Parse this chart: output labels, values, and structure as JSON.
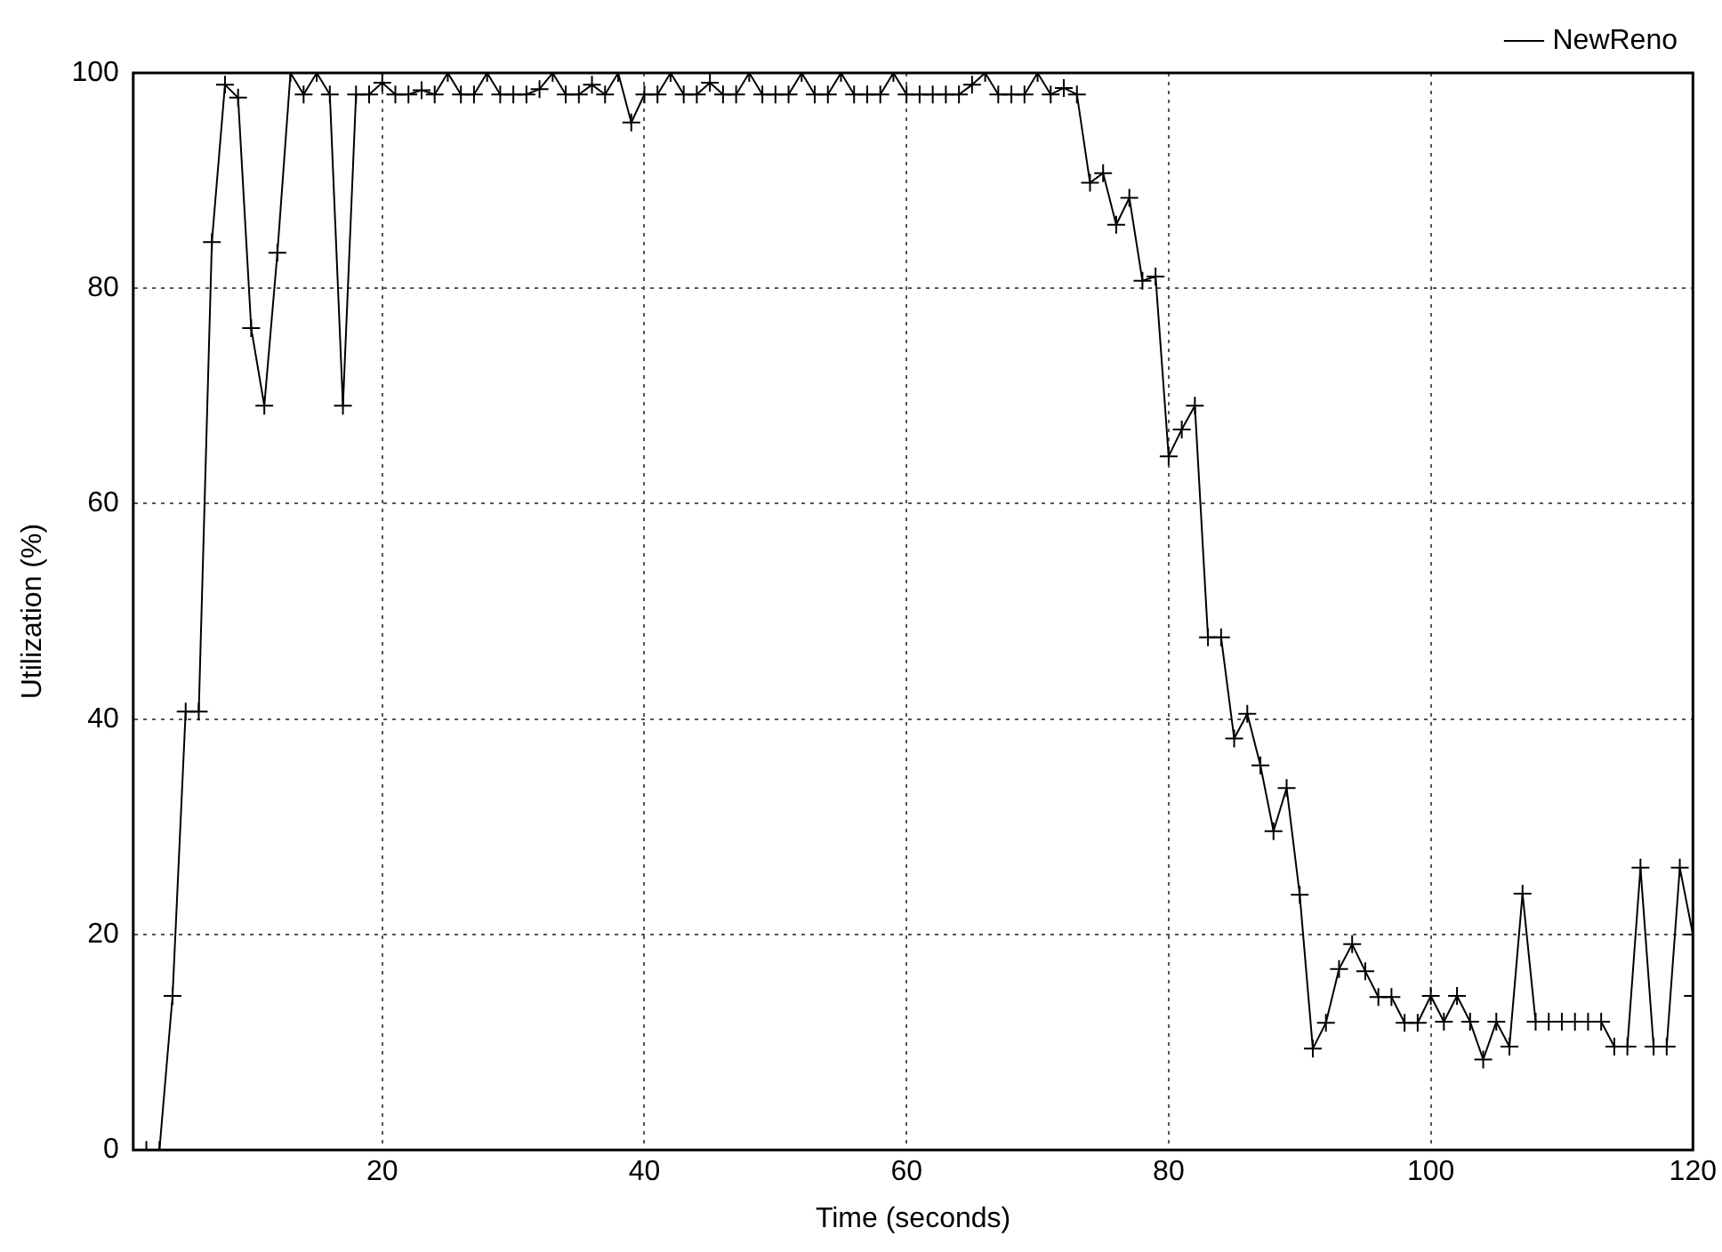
{
  "chart_data": {
    "type": "line",
    "xlabel": "Time (seconds)",
    "ylabel": "Utilization (%)",
    "xlim": [
      1,
      120
    ],
    "xticks": [
      20,
      40,
      60,
      80,
      100,
      120
    ],
    "ylim": [
      0,
      100
    ],
    "yticks": [
      0,
      20,
      40,
      60,
      80,
      100
    ],
    "grid": true,
    "legend": "top right",
    "marker": "cross",
    "line_style": "solid",
    "series": [
      {
        "name": "NewReno",
        "color": "#000000",
        "x": [
          1,
          2,
          3,
          4,
          5,
          6,
          7,
          8,
          9,
          10,
          11,
          12,
          13,
          14,
          15,
          16,
          17,
          18,
          19,
          20,
          21,
          22,
          23,
          24,
          25,
          26,
          27,
          28,
          29,
          30,
          31,
          32,
          33,
          34,
          35,
          36,
          37,
          38,
          39,
          40,
          41,
          42,
          43,
          44,
          45,
          46,
          47,
          48,
          49,
          50,
          51,
          52,
          53,
          54,
          55,
          56,
          57,
          58,
          59,
          60,
          61,
          62,
          63,
          64,
          65,
          66,
          67,
          68,
          69,
          70,
          71,
          72,
          73,
          74,
          75,
          76,
          77,
          78,
          79,
          80,
          81,
          82,
          83,
          84,
          85,
          86,
          87,
          88,
          89,
          90,
          91,
          92,
          93,
          94,
          95,
          96,
          97,
          98,
          99,
          100,
          101,
          102,
          103,
          104,
          105,
          106,
          107,
          108,
          109,
          110,
          111,
          112,
          113,
          114,
          115,
          116,
          117,
          118,
          119,
          120,
          120
        ],
        "values": [
          0,
          0,
          0,
          14.3,
          40.7,
          40.7,
          84.3,
          98.9,
          97.7,
          76.3,
          69.1,
          83.3,
          100,
          98,
          100,
          98,
          69.1,
          98,
          98,
          99.1,
          98,
          98,
          98.4,
          98,
          100,
          98,
          98,
          100,
          98,
          98,
          98,
          98.5,
          100,
          98,
          98,
          98.9,
          98,
          100,
          95.4,
          98,
          98,
          100,
          98,
          98,
          99.1,
          98,
          98,
          100,
          98,
          98,
          98,
          100,
          98,
          98,
          100,
          98,
          98,
          98,
          100,
          98,
          98,
          98,
          98,
          98,
          98.9,
          100,
          98,
          98,
          98,
          100,
          98,
          98.6,
          98,
          89.8,
          90.7,
          85.9,
          88.4,
          80.7,
          81.1,
          64.4,
          66.9,
          69.1,
          47.6,
          47.6,
          38.2,
          40.5,
          35.7,
          29.6,
          33.6,
          23.7,
          9.4,
          11.8,
          16.8,
          19.1,
          16.6,
          14.2,
          14.2,
          11.8,
          11.8,
          14.3,
          11.9,
          14.3,
          11.9,
          8.4,
          11.9,
          9.6,
          23.8,
          11.9,
          11.9,
          11.9,
          11.9,
          11.9,
          11.9,
          9.6,
          9.6,
          26.2,
          9.6,
          9.6,
          26.2,
          20,
          14.3
        ]
      }
    ]
  }
}
